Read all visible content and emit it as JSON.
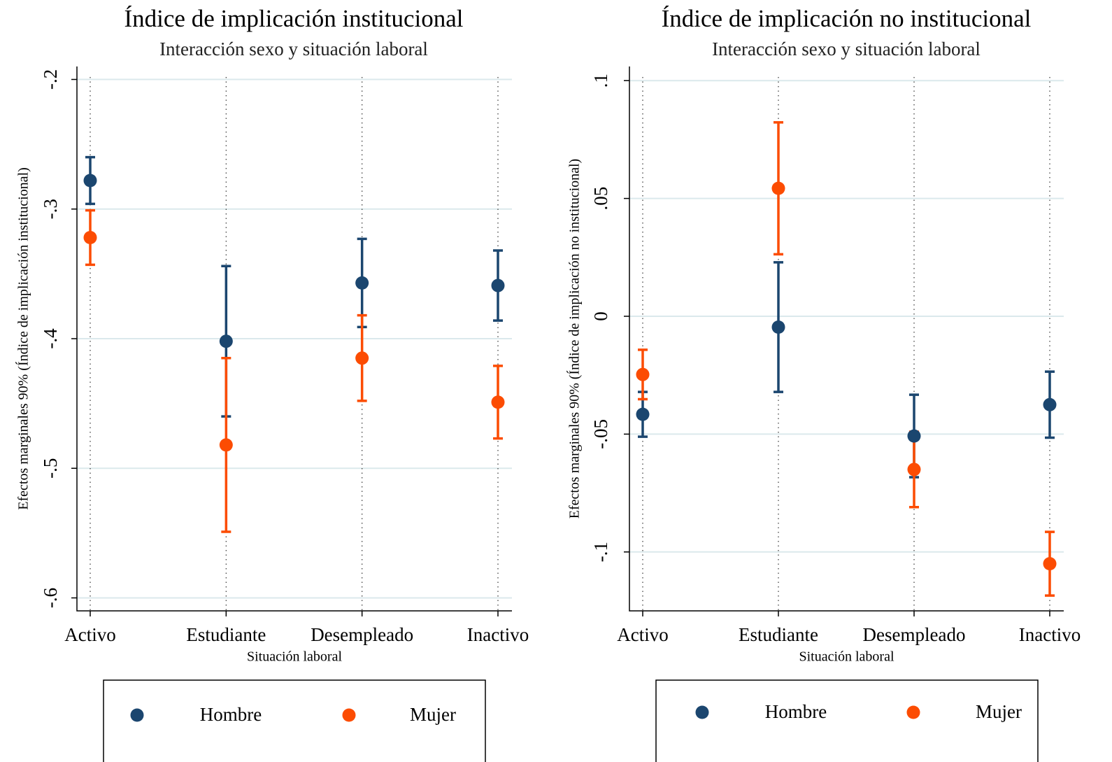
{
  "chart_data": [
    {
      "type": "errorbar",
      "title": "Índice de implicación institucional",
      "subtitle": "Interacción sexo y situación laboral",
      "x_label": "Situación laboral",
      "y_label": "Efectos marginales 90% (Índice de implicación institucional)",
      "categories": [
        "Activo",
        "Estudiante",
        "Desempleado",
        "Inactivo"
      ],
      "series": [
        {
          "name": "Hombre",
          "color": "#1b466f",
          "values": [
            -0.278,
            -0.402,
            -0.357,
            -0.359
          ],
          "errors": [
            0.018,
            0.058,
            0.034,
            0.027
          ]
        },
        {
          "name": "Mujer",
          "color": "#fc4c02",
          "values": [
            -0.322,
            -0.482,
            -0.415,
            -0.449
          ],
          "errors": [
            0.021,
            0.067,
            0.033,
            0.028
          ]
        }
      ],
      "ylim": [
        -0.61,
        -0.19
      ],
      "yticks": [
        {
          "value": -0.2,
          "label": "-.2"
        },
        {
          "value": -0.3,
          "label": "-.3"
        },
        {
          "value": -0.4,
          "label": "-.4"
        },
        {
          "value": -0.5,
          "label": "-.5"
        },
        {
          "value": -0.6,
          "label": "-.6"
        }
      ],
      "grid": true,
      "legend": "bottom"
    },
    {
      "type": "errorbar",
      "title": "Índice de implicación no institucional",
      "subtitle": "Interacción sexo y situación laboral",
      "x_label": "Situación laboral",
      "y_label": "Efectos marginales 90% (Índice de implicación no institucional)",
      "categories": [
        "Activo",
        "Estudiante",
        "Desempleado",
        "Inactivo"
      ],
      "series": [
        {
          "name": "Hombre",
          "color": "#1b466f",
          "values": [
            -0.0416,
            -0.0046,
            -0.0508,
            -0.0375
          ],
          "errors": [
            0.0095,
            0.0275,
            0.0175,
            0.014
          ]
        },
        {
          "name": "Mujer",
          "color": "#fc4c02",
          "values": [
            -0.0247,
            0.0543,
            -0.065,
            -0.105
          ],
          "errors": [
            0.0105,
            0.028,
            0.016,
            0.0135
          ]
        }
      ],
      "ylim": [
        -0.125,
        0.106
      ],
      "yticks": [
        {
          "value": 0.1,
          "label": ".1"
        },
        {
          "value": 0.05,
          "label": ".05"
        },
        0,
        {
          "value": -0.05,
          "label": "-.05"
        },
        {
          "value": -0.1,
          "label": "-.1"
        }
      ],
      "grid": true,
      "legend": "bottom"
    }
  ]
}
